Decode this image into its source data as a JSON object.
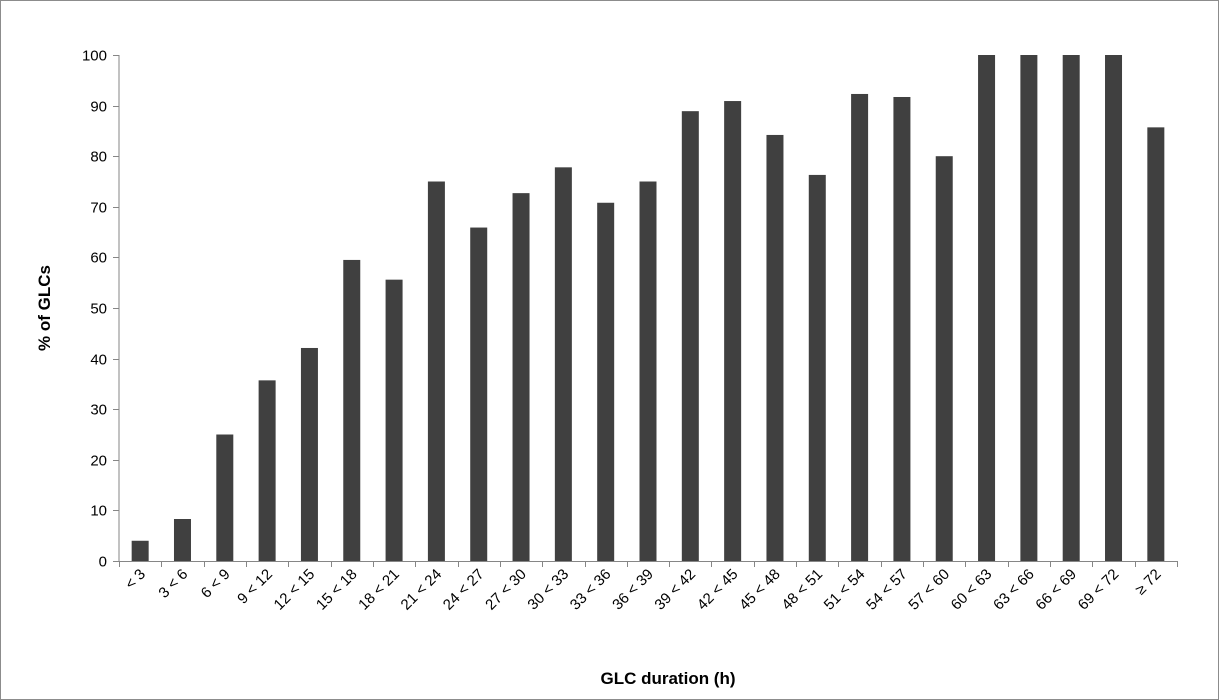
{
  "chart_data": {
    "type": "bar",
    "title": "",
    "xlabel": "GLC duration (h)",
    "ylabel": "% of GLCs",
    "ylim": [
      0,
      100
    ],
    "yticks": [
      0,
      10,
      20,
      30,
      40,
      50,
      60,
      70,
      80,
      90,
      100
    ],
    "grid": false,
    "legend": "none",
    "bar_color": "#404040",
    "categories": [
      "< 3",
      "3 < 6",
      "6 < 9",
      "9 < 12",
      "12 < 15",
      "15 < 18",
      "18 < 21",
      "21 < 24",
      "24 < 27",
      "27 < 30",
      "30 < 33",
      "33 < 36",
      "36 < 39",
      "39 < 42",
      "42 < 45",
      "45 < 48",
      "48 < 51",
      "51 < 54",
      "54 < 57",
      "57 < 60",
      "60 < 63",
      "63 < 66",
      "66 < 69",
      "69 < 72",
      "≥ 72"
    ],
    "values": [
      4,
      8.3,
      25,
      35.7,
      42.1,
      59.5,
      55.6,
      75,
      65.9,
      72.7,
      77.8,
      70.8,
      75,
      88.9,
      90.9,
      84.2,
      76.3,
      92.3,
      91.7,
      80,
      100,
      100,
      100,
      100,
      85.7
    ]
  }
}
